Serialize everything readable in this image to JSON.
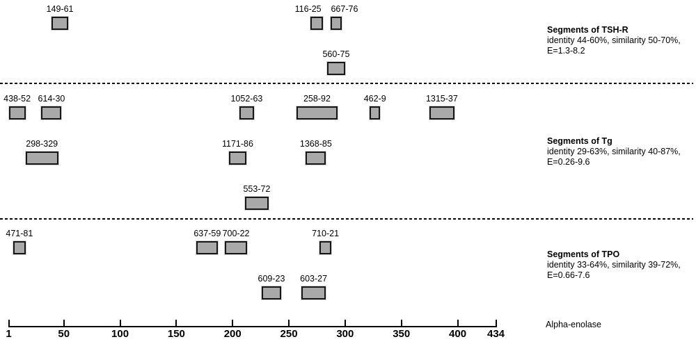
{
  "figure": {
    "background": "#ffffff",
    "box_fill": "#a9a9a9",
    "box_border": "#161616",
    "text_color": "#000000"
  },
  "chart_data": {
    "type": "bar",
    "subtype": "horizontal-segment-map",
    "title": "",
    "xlabel": "Alpha-enolase",
    "axis": {
      "min": 1,
      "max": 434,
      "ticks": [
        1,
        50,
        100,
        150,
        200,
        250,
        300,
        350,
        400,
        434
      ]
    },
    "sections": [
      {
        "id": "tshr",
        "side_label": {
          "title": "Segments of TSH-R",
          "line2": "identity 44-60%, similarity 50-70%,",
          "line3": "E=1.3-8.2"
        },
        "segments": [
          {
            "label": "149-61",
            "row": 0,
            "start": 39,
            "end": 53
          },
          {
            "label": "116-25",
            "row": 0,
            "start": 269,
            "end": 279,
            "label_dx": -12
          },
          {
            "label": "667-76",
            "row": 0,
            "start": 287,
            "end": 296,
            "label_dx": 12
          },
          {
            "label": "560-75",
            "row": 1,
            "start": 284,
            "end": 299
          }
        ]
      },
      {
        "id": "tg",
        "side_label": {
          "title": "Segments of Tg",
          "line2": "identity 29-63%, similarity 40-87%,",
          "line3": "E=0.26-9.6"
        },
        "segments": [
          {
            "label": "438-52",
            "row": 0,
            "start": 1,
            "end": 15
          },
          {
            "label": "614-30",
            "row": 0,
            "start": 30,
            "end": 47
          },
          {
            "label": "1052-63",
            "row": 0,
            "start": 206,
            "end": 218
          },
          {
            "label": "258-92",
            "row": 0,
            "start": 257,
            "end": 292
          },
          {
            "label": "462-9",
            "row": 0,
            "start": 322,
            "end": 330
          },
          {
            "label": "1315-37",
            "row": 0,
            "start": 375,
            "end": 396
          },
          {
            "label": "298-329",
            "row": 1,
            "start": 16,
            "end": 44
          },
          {
            "label": "1171-86",
            "row": 1,
            "start": 197,
            "end": 211
          },
          {
            "label": "1368-85",
            "row": 1,
            "start": 265,
            "end": 282
          },
          {
            "label": "553-72",
            "row": 2,
            "start": 211,
            "end": 231
          }
        ]
      },
      {
        "id": "tpo",
        "side_label": {
          "title": "Segments of TPO",
          "line2": "identity 33-64%, similarity 39-72%,",
          "line3": "E=0.66-7.6"
        },
        "segments": [
          {
            "label": "471-81",
            "row": 0,
            "start": 5,
            "end": 15
          },
          {
            "label": "637-59",
            "row": 0,
            "start": 168,
            "end": 186
          },
          {
            "label": "700-22",
            "row": 0,
            "start": 193,
            "end": 212
          },
          {
            "label": "710-21",
            "row": 0,
            "start": 277,
            "end": 287
          },
          {
            "label": "609-23",
            "row": 1,
            "start": 226,
            "end": 242
          },
          {
            "label": "603-27",
            "row": 1,
            "start": 261,
            "end": 282
          }
        ]
      }
    ]
  }
}
